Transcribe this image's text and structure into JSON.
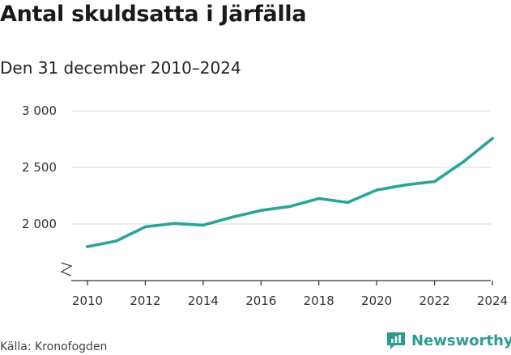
{
  "title": "Antal skuldsatta i Järfälla",
  "subtitle": "Den 31 december 2010–2024",
  "source": "Källa: Kronofogden",
  "brand": {
    "name": "Newsworthy",
    "icon": "newsworthy-logo-icon"
  },
  "colors": {
    "line": "#2aa399",
    "grid": "#d9d9d9",
    "axis": "#333333",
    "brand": "#2a9d8f"
  },
  "chart_data": {
    "type": "line",
    "title": "Antal skuldsatta i Järfälla",
    "subtitle": "Den 31 december 2010–2024",
    "xlabel": "",
    "ylabel": "",
    "x": [
      2010,
      2011,
      2012,
      2013,
      2014,
      2015,
      2016,
      2017,
      2018,
      2019,
      2020,
      2021,
      2022,
      2023,
      2024
    ],
    "series": [
      {
        "name": "Antal skuldsatta",
        "values": [
          1800,
          1850,
          1975,
          2005,
          1990,
          2060,
          2120,
          2155,
          2225,
          2190,
          2300,
          2345,
          2375,
          2550,
          2755
        ]
      }
    ],
    "ylim": [
      1500,
      3000
    ],
    "xlim": [
      2010,
      2024
    ],
    "y_ticks": [
      2000,
      2500,
      3000
    ],
    "y_tick_labels": [
      "2 000",
      "2 500",
      "3 000"
    ],
    "x_ticks": [
      2010,
      2012,
      2014,
      2016,
      2018,
      2020,
      2022,
      2024
    ],
    "x_tick_labels": [
      "2010",
      "2012",
      "2014",
      "2016",
      "2018",
      "2020",
      "2022",
      "2024"
    ],
    "axis_break": true,
    "grid": true
  }
}
